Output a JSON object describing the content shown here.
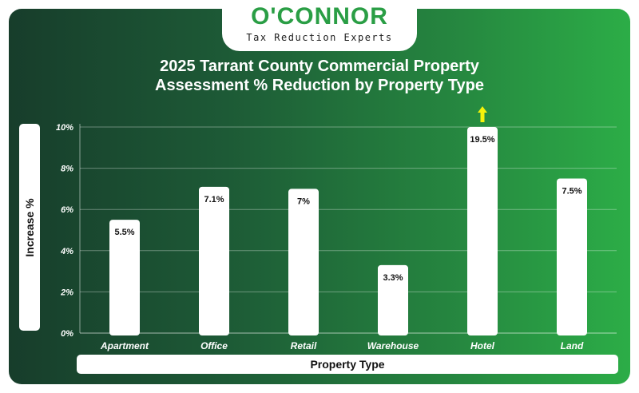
{
  "logo": {
    "name": "O'CONNOR",
    "tagline": "Tax Reduction Experts"
  },
  "colors": {
    "brand_green": "#2a9e45",
    "bar": "#ffffff",
    "arrow": "#f5f20a"
  },
  "chart_data": {
    "type": "bar",
    "title_line1": "2025 Tarrant County Commercial Property",
    "title_line2": "Assessment % Reduction by Property Type",
    "xlabel": "Property Type",
    "ylabel": "Increase %",
    "categories": [
      "Apartment",
      "Office",
      "Retail",
      "Warehouse",
      "Hotel",
      "Land"
    ],
    "values": [
      5.5,
      7.1,
      7,
      3.3,
      19.5,
      7.5
    ],
    "value_labels": [
      "5.5%",
      "7.1%",
      "7%",
      "3.3%",
      "19.5%",
      "7.5%"
    ],
    "ylim": [
      0,
      10
    ],
    "yticks": [
      "0%",
      "2%",
      "4%",
      "6%",
      "8%",
      "10%"
    ],
    "ytick_values": [
      0,
      2,
      4,
      6,
      8,
      10
    ],
    "grid": true,
    "legend": "none",
    "annotations": [
      {
        "category": "Hotel",
        "type": "arrow-up",
        "note": "value exceeds axis range"
      }
    ]
  }
}
